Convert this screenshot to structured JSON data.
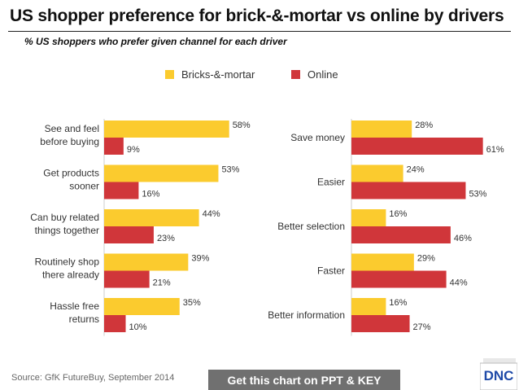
{
  "title": "US shopper preference for brick-&-mortar vs online by drivers",
  "subtitle": "% US shoppers who prefer given channel for each driver",
  "source": "Source: GfK FutureBuy, September 2014",
  "cta_label": "Get this chart on PPT & KEY",
  "logo_text": "DNC",
  "colors": {
    "bricks": "#FBCB2E",
    "online": "#D0363A",
    "label": "#333333",
    "axis": "#cccccc"
  },
  "chart_data": [
    {
      "type": "bar",
      "orientation": "horizontal",
      "legend_position": "top-center",
      "categories": [
        "See and feel before buying",
        "Get products sooner",
        "Can buy related things together",
        "Routinely shop there already",
        "Hassle free returns"
      ],
      "category_lines": [
        [
          "See and feel",
          "before buying"
        ],
        [
          "Get products",
          "sooner"
        ],
        [
          "Can buy related",
          "things together"
        ],
        [
          "Routinely shop",
          "there already"
        ],
        [
          "Hassle free",
          "returns"
        ]
      ],
      "series": [
        {
          "name": "Bricks-&-mortar",
          "values": [
            58,
            53,
            44,
            39,
            35
          ],
          "labels": [
            "58%",
            "53%",
            "44%",
            "39%",
            "35%"
          ]
        },
        {
          "name": "Online",
          "values": [
            9,
            16,
            23,
            21,
            10
          ],
          "labels": [
            "9%",
            "16%",
            "23%",
            "21%",
            "10%"
          ]
        }
      ],
      "xlim": [
        0,
        100
      ],
      "unit": "%"
    },
    {
      "type": "bar",
      "orientation": "horizontal",
      "categories": [
        "Save money",
        "Easier",
        "Better selection",
        "Faster",
        "Better information"
      ],
      "category_lines": [
        [
          "Save money"
        ],
        [
          "Easier"
        ],
        [
          "Better selection"
        ],
        [
          "Faster"
        ],
        [
          "Better information"
        ]
      ],
      "series": [
        {
          "name": "Bricks-&-mortar",
          "values": [
            28,
            24,
            16,
            29,
            16
          ],
          "labels": [
            "28%",
            "24%",
            "16%",
            "29%",
            "16%"
          ]
        },
        {
          "name": "Online",
          "values": [
            61,
            53,
            46,
            44,
            27
          ],
          "labels": [
            "61%",
            "53%",
            "46%",
            "44%",
            "27%"
          ]
        }
      ],
      "xlim": [
        0,
        100
      ],
      "unit": "%"
    }
  ]
}
